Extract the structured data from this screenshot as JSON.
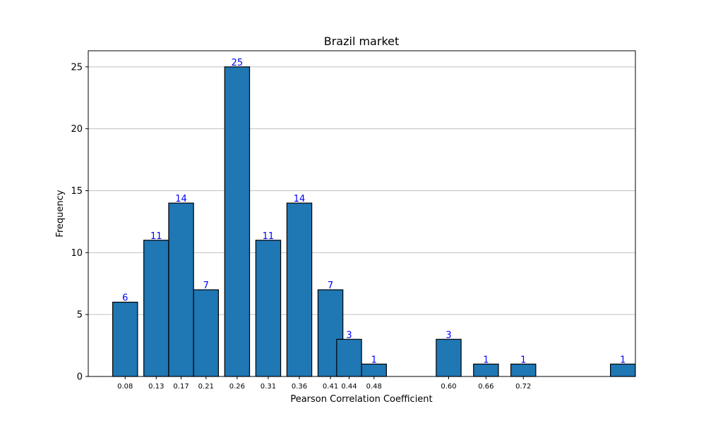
{
  "chart_data": {
    "type": "bar",
    "title": "Brazil market",
    "xlabel": "Pearson Correlation Coefficient",
    "ylabel": "Frequency",
    "ylim": [
      0,
      26.3
    ],
    "yticks": [
      0,
      5,
      10,
      15,
      20,
      25
    ],
    "grid": "y-major",
    "bins": [
      {
        "x": 0.08,
        "tick_label": "0.08",
        "value": 6
      },
      {
        "x": 0.13,
        "tick_label": "0.13",
        "value": 11
      },
      {
        "x": 0.17,
        "tick_label": "0.17",
        "value": 14
      },
      {
        "x": 0.21,
        "tick_label": "0.21",
        "value": 7
      },
      {
        "x": 0.26,
        "tick_label": "0.26",
        "value": 25
      },
      {
        "x": 0.31,
        "tick_label": "0.31",
        "value": 11
      },
      {
        "x": 0.36,
        "tick_label": "0.36",
        "value": 14
      },
      {
        "x": 0.41,
        "tick_label": "0.41",
        "value": 7
      },
      {
        "x": 0.44,
        "tick_label": "0.44",
        "value": 3
      },
      {
        "x": 0.48,
        "tick_label": "0.48",
        "value": 1
      },
      {
        "x": 0.6,
        "tick_label": "0.60",
        "value": 3
      },
      {
        "x": 0.66,
        "tick_label": "0.66",
        "value": 1
      },
      {
        "x": 0.72,
        "tick_label": "0.72",
        "value": 1
      },
      {
        "x": 0.88,
        "tick_label": "",
        "value": 1
      }
    ],
    "bar_color": "#1f77b4",
    "label_color": "#0000ff"
  }
}
